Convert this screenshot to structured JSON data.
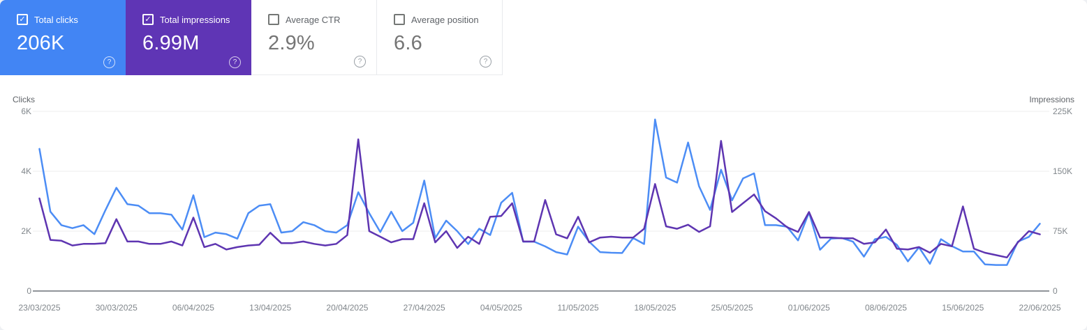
{
  "icons": {
    "check": "✓",
    "help": "?"
  },
  "cards": [
    {
      "label": "Total clicks",
      "value": "206K",
      "checked": true,
      "bg": "#4285f4"
    },
    {
      "label": "Total impressions",
      "value": "6.99M",
      "checked": true,
      "bg": "#5f35b5"
    },
    {
      "label": "Average CTR",
      "value": "2.9%",
      "checked": false,
      "bg": "#ffffff"
    },
    {
      "label": "Average position",
      "value": "6.6",
      "checked": false,
      "bg": "#ffffff"
    }
  ],
  "chart_data": {
    "type": "line",
    "grid": true,
    "x_tick_labels": [
      "23/03/2025",
      "30/03/2025",
      "06/04/2025",
      "13/04/2025",
      "20/04/2025",
      "27/04/2025",
      "04/05/2025",
      "11/05/2025",
      "18/05/2025",
      "25/05/2025",
      "01/06/2025",
      "08/06/2025",
      "15/06/2025",
      "22/06/2025"
    ],
    "x_label_every_n_points": 7,
    "left_axis": {
      "title": "Clicks",
      "ticks": [
        "0",
        "2K",
        "4K",
        "6K"
      ],
      "tick_values": [
        0,
        2000,
        4000,
        6000
      ],
      "max": 6000
    },
    "right_axis": {
      "title": "Impressions",
      "ticks": [
        "0",
        "75K",
        "150K",
        "225K"
      ],
      "tick_values": [
        0,
        75000,
        150000,
        225000
      ],
      "max": 225000
    },
    "series": [
      {
        "name": "Clicks",
        "axis": "left",
        "color": "#4c8df5",
        "values": [
          4750,
          2650,
          2200,
          2100,
          2200,
          1900,
          2700,
          3450,
          2900,
          2850,
          2600,
          2600,
          2550,
          2050,
          3200,
          1800,
          1950,
          1900,
          1750,
          2600,
          2850,
          2900,
          1950,
          2000,
          2300,
          2200,
          2000,
          1950,
          2200,
          3300,
          2600,
          1970,
          2650,
          2000,
          2280,
          3690,
          1770,
          2350,
          2000,
          1570,
          2080,
          1870,
          2950,
          3280,
          1650,
          1650,
          1490,
          1300,
          1220,
          2150,
          1650,
          1300,
          1280,
          1270,
          1770,
          1570,
          5730,
          3790,
          3620,
          4960,
          3500,
          2710,
          4050,
          3030,
          3760,
          3930,
          2200,
          2200,
          2150,
          1690,
          2620,
          1380,
          1750,
          1770,
          1650,
          1150,
          1730,
          1810,
          1540,
          990,
          1460,
          910,
          1730,
          1500,
          1320,
          1320,
          890,
          870,
          870,
          1650,
          1810,
          2250
        ]
      },
      {
        "name": "Impressions",
        "axis": "right",
        "color": "#5e35b1",
        "values": [
          116000,
          64000,
          63000,
          57000,
          59000,
          59000,
          60000,
          90000,
          62000,
          62000,
          59000,
          59000,
          62000,
          57000,
          92000,
          55000,
          59000,
          52000,
          55000,
          57000,
          58000,
          73000,
          60000,
          60000,
          62000,
          59000,
          57000,
          59000,
          70000,
          190000,
          75000,
          68000,
          61000,
          65000,
          65000,
          110000,
          61000,
          75000,
          54000,
          68000,
          59000,
          93000,
          94000,
          110000,
          62000,
          62000,
          114000,
          71000,
          66000,
          93000,
          61000,
          67000,
          68000,
          67000,
          67000,
          78000,
          134000,
          81000,
          78000,
          83000,
          74000,
          81000,
          188000,
          99000,
          110000,
          121000,
          100000,
          91000,
          80000,
          74000,
          99000,
          67000,
          67000,
          66000,
          66000,
          59000,
          61000,
          77000,
          53000,
          52000,
          55000,
          48000,
          59000,
          56000,
          106000,
          53000,
          48000,
          45000,
          42000,
          61000,
          75000,
          71000
        ]
      }
    ]
  },
  "style": {
    "grid_color": "#ececec",
    "zero_line_color": "#8f9499",
    "tick_text_color": "#80868b",
    "axis_title_color": "#5f6368"
  }
}
